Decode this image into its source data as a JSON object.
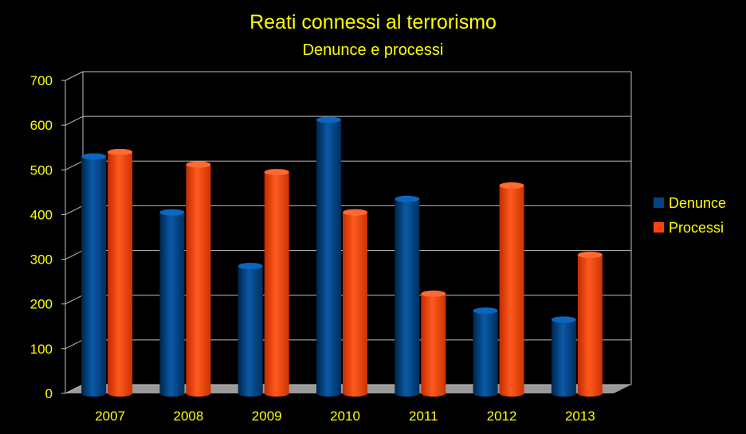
{
  "chart_data": {
    "type": "bar",
    "title": "Reati connessi al terrorismo",
    "subtitle": "Denunce e processi",
    "xlabel": "",
    "ylabel": "",
    "categories": [
      "2007",
      "2008",
      "2009",
      "2010",
      "2011",
      "2012",
      "2013"
    ],
    "series": [
      {
        "name": "Denunce",
        "values": [
          530,
          405,
          285,
          612,
          435,
          185,
          165
        ],
        "color": "#004586"
      },
      {
        "name": "Processi",
        "values": [
          540,
          512,
          495,
          405,
          223,
          465,
          310
        ],
        "color": "#ff420e"
      }
    ],
    "ylim": [
      0,
      700
    ],
    "yticks": [
      "0",
      "100",
      "200",
      "300",
      "400",
      "500",
      "600",
      "700"
    ],
    "grid": true,
    "legend": "right",
    "style": "3d-cylinder",
    "colors": {
      "background": "#000000",
      "text": "#ffff00",
      "grid": "#bfbfbf",
      "floor": "#9a9a9a"
    }
  }
}
